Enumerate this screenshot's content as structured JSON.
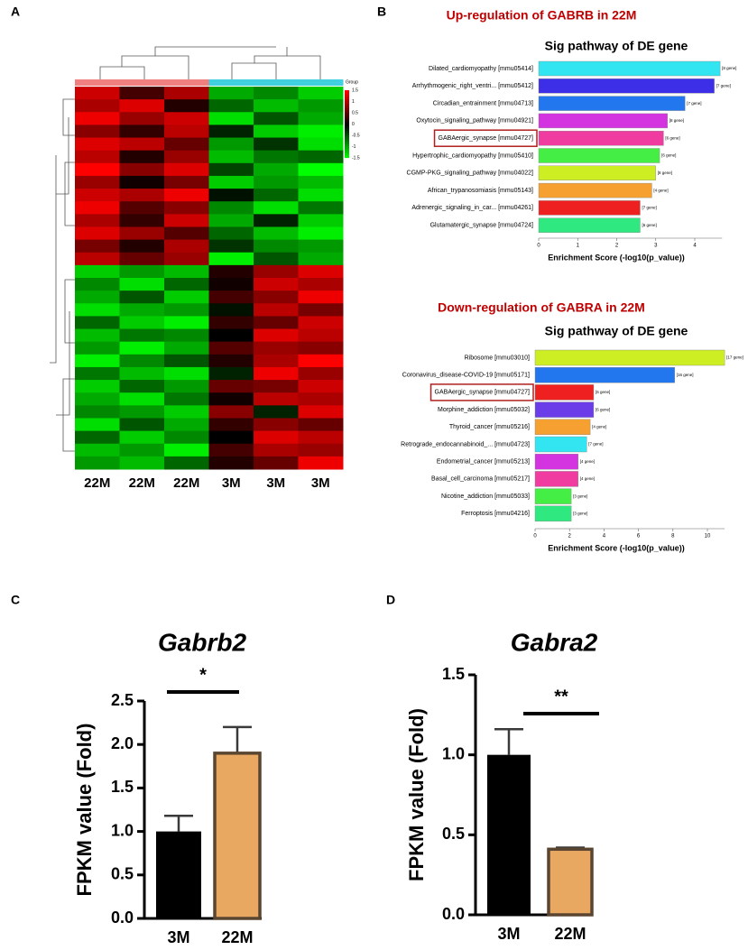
{
  "chart_data": [
    {
      "type": "heatmap",
      "panel": "A",
      "legend_title": "Group",
      "categories": [
        "22M",
        "22M",
        "22M",
        "3M",
        "3M",
        "3M"
      ],
      "group_colors": [
        "#f08080",
        "#f08080",
        "#f08080",
        "#40d0e0",
        "#40d0e0",
        "#40d0e0"
      ],
      "colormap": [
        "#00ff00",
        "#000000",
        "#ff0000"
      ],
      "clim": [
        -1.5,
        1.5
      ],
      "cticks": [
        1.5,
        1,
        0.5,
        0,
        -0.5,
        -1,
        -1.5
      ],
      "values": [
        [
          1.2,
          0.4,
          1.0,
          -1.0,
          -0.8,
          -1.2
        ],
        [
          1.0,
          1.3,
          0.2,
          -0.6,
          -1.1,
          -0.9
        ],
        [
          1.4,
          0.9,
          1.2,
          -1.3,
          -0.5,
          -1.0
        ],
        [
          0.8,
          0.3,
          1.1,
          -0.2,
          -1.2,
          -1.4
        ],
        [
          1.3,
          1.1,
          0.6,
          -0.9,
          -0.3,
          -1.3
        ],
        [
          1.1,
          0.2,
          0.9,
          -1.1,
          -0.7,
          -0.6
        ],
        [
          1.5,
          0.8,
          1.3,
          -0.4,
          -1.0,
          -1.5
        ],
        [
          0.9,
          0.1,
          0.7,
          -1.2,
          -0.9,
          -1.1
        ],
        [
          1.2,
          1.0,
          1.4,
          -0.1,
          -0.6,
          -1.3
        ],
        [
          1.4,
          0.5,
          0.8,
          -0.8,
          -1.3,
          -0.7
        ],
        [
          1.0,
          0.3,
          1.2,
          -1.0,
          -0.2,
          -1.2
        ],
        [
          1.3,
          0.9,
          0.5,
          -0.6,
          -1.1,
          -1.4
        ],
        [
          0.7,
          0.2,
          1.0,
          -0.3,
          -0.8,
          -0.9
        ],
        [
          1.1,
          0.6,
          0.9,
          -1.4,
          -0.5,
          -1.0
        ],
        [
          -1.2,
          -0.9,
          -1.1,
          0.2,
          0.9,
          1.3
        ],
        [
          -0.8,
          -1.3,
          -0.6,
          0.1,
          1.2,
          1.0
        ],
        [
          -1.0,
          -0.5,
          -1.2,
          0.4,
          0.8,
          1.4
        ],
        [
          -1.3,
          -1.0,
          -0.9,
          -0.1,
          1.1,
          0.7
        ],
        [
          -0.6,
          -1.2,
          -1.4,
          0.3,
          0.6,
          1.2
        ],
        [
          -1.1,
          -0.7,
          -0.8,
          0.0,
          1.3,
          1.1
        ],
        [
          -0.9,
          -1.4,
          -1.0,
          0.5,
          0.9,
          0.8
        ],
        [
          -1.4,
          -0.8,
          -0.5,
          0.2,
          1.0,
          1.5
        ],
        [
          -0.7,
          -1.1,
          -1.3,
          -0.2,
          1.4,
          0.9
        ],
        [
          -1.2,
          -0.6,
          -0.9,
          0.6,
          0.7,
          1.2
        ],
        [
          -1.0,
          -1.3,
          -0.7,
          0.1,
          1.1,
          1.0
        ],
        [
          -0.8,
          -0.9,
          -1.2,
          0.8,
          -0.2,
          1.3
        ],
        [
          -1.3,
          -0.5,
          -1.0,
          0.3,
          0.8,
          0.6
        ],
        [
          -0.6,
          -1.2,
          -0.8,
          0.0,
          1.3,
          1.1
        ],
        [
          -1.1,
          -0.9,
          -1.4,
          0.4,
          1.0,
          0.9
        ],
        [
          -0.9,
          -1.1,
          -0.6,
          0.2,
          0.6,
          1.4
        ]
      ]
    },
    {
      "type": "barh",
      "panel": "B",
      "title": "Up-regulation of GABRB in 22M",
      "subtitle": "Sig pathway of DE gene",
      "xlabel": "Enrichment Score (-log10(p_value))",
      "categories": [
        "Dilated_cardiomyopathy [mmu05414]",
        "Arrhythmogenic_right_ventri... [mmu05412]",
        "Circadian_entrainment [mmu04713]",
        "Oxytocin_signaling_pathway [mmu04921]",
        "GABAergic_synapse [mmu04727]",
        "Hypertrophic_cardiomyopathy [mmu05410]",
        "CGMP-PKG_signaling_pathway [mmu04022]",
        "African_trypanosomiasis [mmu05143]",
        "Adrenergic_signaling_in_car... [mmu04261]",
        "Glutamatergic_synapse [mmu04724]"
      ],
      "values": [
        4.65,
        4.5,
        3.75,
        3.3,
        3.2,
        3.1,
        3.0,
        2.9,
        2.6,
        2.6
      ],
      "gene_labels": [
        "[8 gene]",
        "[7 gene]",
        "[7 gene]",
        "[8 gene]",
        "[6 gene]",
        "[6 gene]",
        "[8 gene]",
        "[4 gene]",
        "[7 gene]",
        "[6 gene]"
      ],
      "colors": [
        "#33e5f0",
        "#3d2ee8",
        "#2277ee",
        "#d433e0",
        "#f03ca0",
        "#44ee44",
        "#ccee22",
        "#f5a030",
        "#ee2020",
        "#30e880"
      ],
      "highlight_index": 4,
      "xlim": [
        0,
        4.7
      ],
      "xticks": [
        0,
        1,
        2,
        3,
        4
      ]
    },
    {
      "type": "barh",
      "title": "Down-regulation of GABRA in 22M",
      "subtitle": "Sig pathway of DE gene",
      "xlabel": "Enrichment Score (-log10(p_value))",
      "categories": [
        "Ribosome [mmu03010]",
        "Coronavirus_disease-COVID-19 [mmu05171]",
        "GABAergic_synapse [mmu04727]",
        "Morphine_addiction [mmu05032]",
        "Thyroid_cancer [mmu05216]",
        "Retrograde_endocannabinoid_... [mmu04723]",
        "Endometrial_cancer [mmu05213]",
        "Basal_cell_carcinoma [mmu05217]",
        "Nicotine_addiction [mmu05033]",
        "Ferroptosis [mmu04216]"
      ],
      "values": [
        11.0,
        8.1,
        3.4,
        3.4,
        3.2,
        3.0,
        2.5,
        2.5,
        2.1,
        2.1
      ],
      "gene_labels": [
        "[17 gene]",
        "[16 gene]",
        "[6 gene]",
        "[6 gene]",
        "[4 gene]",
        "[7 gene]",
        "[4 gene]",
        "[4 gene]",
        "[3 gene]",
        "[3 gene]"
      ],
      "colors": [
        "#ccee22",
        "#2277ee",
        "#ee2020",
        "#6a3de8",
        "#f5a030",
        "#33e5f0",
        "#d433e0",
        "#f03ca0",
        "#44ee44",
        "#30e880"
      ],
      "highlight_index": 2,
      "xlim": [
        0,
        11
      ],
      "xticks": [
        0,
        2,
        4,
        6,
        8,
        10
      ]
    },
    {
      "type": "bar",
      "panel": "C",
      "title": "Gabrb2",
      "ylabel": "FPKM value (Fold)",
      "annotation": "*",
      "categories": [
        "3M",
        "22M"
      ],
      "values": [
        1.0,
        1.9
      ],
      "errors": [
        0.18,
        0.3
      ],
      "colors": [
        "#000000",
        "#e8a862"
      ],
      "ylim": [
        0,
        2.5
      ],
      "yticks": [
        {
          "value": 0,
          "label": "0.0"
        },
        0.5,
        {
          "value": 1,
          "label": "1.0"
        },
        1.5,
        {
          "value": 2,
          "label": "2.0"
        },
        2.5
      ]
    },
    {
      "type": "bar",
      "panel": "D",
      "title": "Gabra2",
      "ylabel": "FPKM value (Fold)",
      "annotation": "**",
      "categories": [
        "3M",
        "22M"
      ],
      "values": [
        1.0,
        0.41
      ],
      "errors": [
        0.16,
        0.01
      ],
      "colors": [
        "#000000",
        "#e8a862"
      ],
      "ylim": [
        0,
        1.5
      ],
      "yticks": [
        {
          "value": 0,
          "label": "0.0"
        },
        0.5,
        {
          "value": 1,
          "label": "1.0"
        },
        1.5
      ]
    }
  ]
}
